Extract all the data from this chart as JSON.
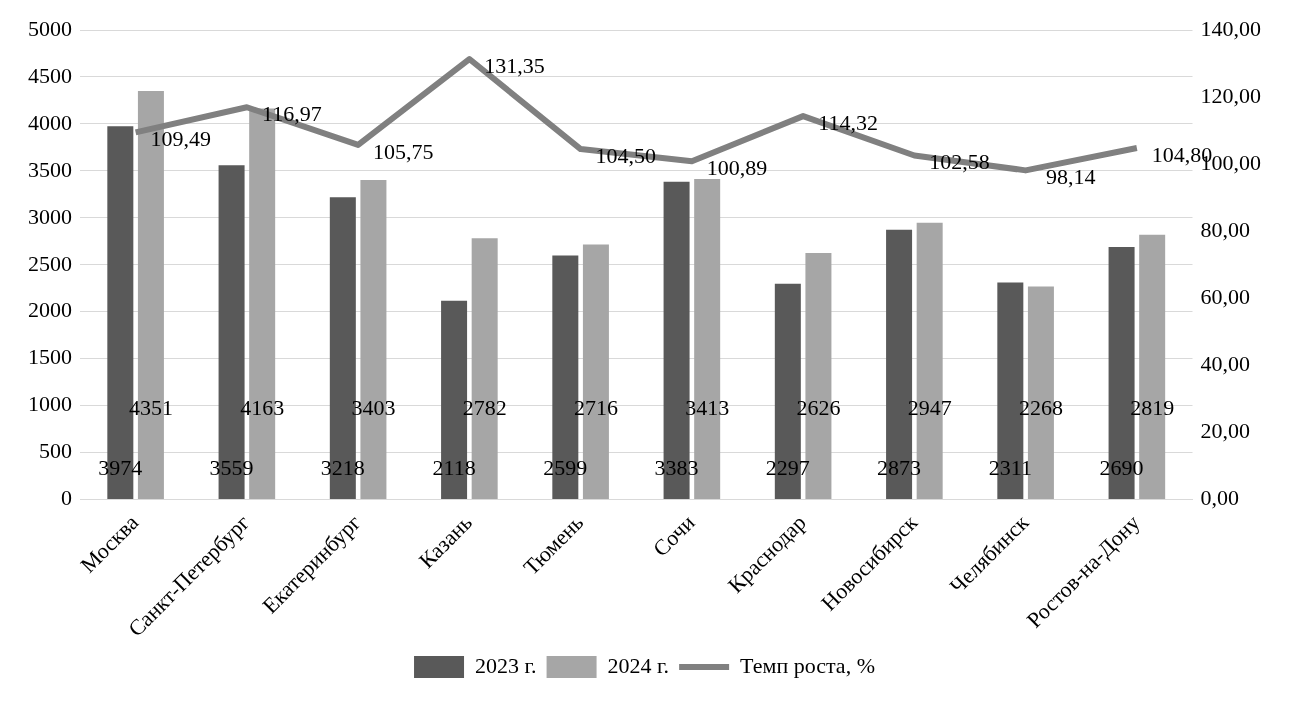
{
  "chart_data": {
    "type": "bar",
    "categories": [
      "Москва",
      "Санкт-Петербург",
      "Екатеринбург",
      "Казань",
      "Тюмень",
      "Сочи",
      "Краснодар",
      "Новосибирск",
      "Челябинск",
      "Ростов-на-Дону"
    ],
    "series": [
      {
        "name": "2023 г.",
        "color": "#595959",
        "values": [
          3974,
          3559,
          3218,
          2118,
          2599,
          3383,
          2297,
          2873,
          2311,
          2690
        ],
        "value_labels": [
          "3974",
          "3559",
          "3218",
          "2118",
          "2599",
          "3383",
          "2297",
          "2873",
          "2311",
          "2690"
        ]
      },
      {
        "name": "2024 г.",
        "color": "#a6a6a6",
        "values": [
          4351,
          4163,
          3403,
          2782,
          2716,
          3413,
          2626,
          2947,
          2268,
          2819
        ],
        "value_labels": [
          "4351",
          "4163",
          "3403",
          "2782",
          "2716",
          "3413",
          "2626",
          "2947",
          "2268",
          "2819"
        ]
      },
      {
        "name": "Темп роста, %",
        "type": "line",
        "axis": "y2",
        "color": "#808080",
        "values": [
          109.49,
          116.97,
          105.75,
          131.35,
          104.5,
          100.89,
          114.32,
          102.58,
          98.14,
          104.8
        ],
        "value_labels": [
          "109,49",
          "116,97",
          "105,75",
          "131,35",
          "104,50",
          "100,89",
          "114,32",
          "102,58",
          "98,14",
          "104,80"
        ]
      }
    ],
    "ylim": [
      0,
      5000
    ],
    "yticks": [
      0,
      500,
      1000,
      1500,
      2000,
      2500,
      3000,
      3500,
      4000,
      4500,
      5000
    ],
    "y2lim": [
      0,
      140
    ],
    "y2ticks": [
      {
        "value": 0,
        "label": "0,00"
      },
      {
        "value": 20,
        "label": "20,00"
      },
      {
        "value": 40,
        "label": "40,00"
      },
      {
        "value": 60,
        "label": "60,00"
      },
      {
        "value": 80,
        "label": "80,00"
      },
      {
        "value": 100,
        "label": "100,00"
      },
      {
        "value": 120,
        "label": "120,00"
      },
      {
        "value": 140,
        "label": "140,00"
      }
    ],
    "grid": "y",
    "legend": "bottom",
    "line_style": "solid"
  }
}
